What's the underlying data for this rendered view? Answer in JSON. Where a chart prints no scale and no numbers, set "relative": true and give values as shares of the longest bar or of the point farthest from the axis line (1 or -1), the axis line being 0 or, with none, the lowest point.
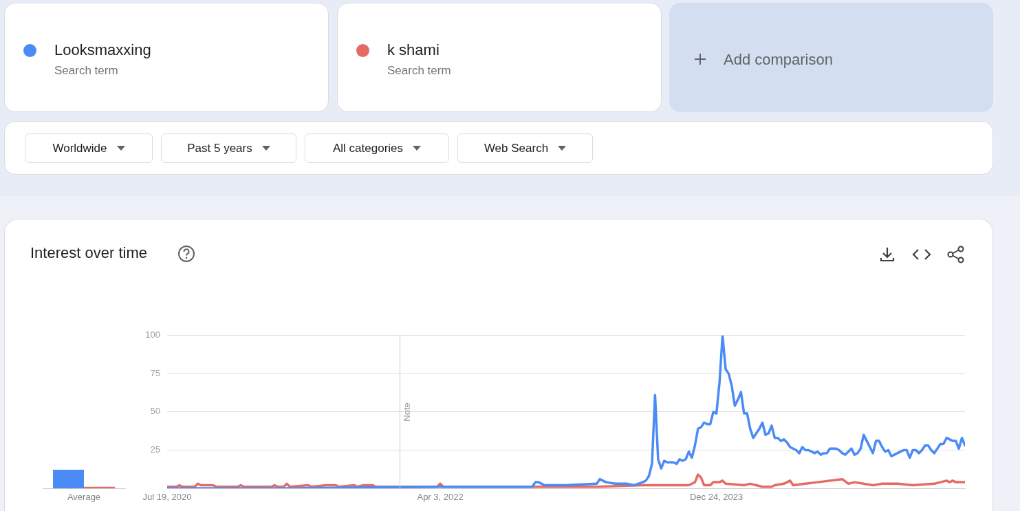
{
  "chart_data": [
    {
      "type": "bar",
      "categories": [
        "Average"
      ],
      "series": [
        {
          "color": "#4b8bf5",
          "values": [
            1
          ]
        },
        {
          "color": "#e66b65",
          "values": [
            0.08
          ]
        }
      ],
      "relative": true,
      "grid": false
    },
    {
      "type": "line",
      "title": "Interest over time",
      "legend": "top",
      "grid": "y",
      "xlim": [
        "2020-07-19",
        "2025-07-13"
      ],
      "xticks": [
        {
          "value": "2020-07-19",
          "label": "Jul 19, 2020"
        },
        {
          "value": "2022-04-03",
          "label": "Apr 3, 2022"
        },
        {
          "value": "2023-12-24",
          "label": "Dec 24, 2023"
        }
      ],
      "ylim": [
        0,
        100
      ],
      "yticks": [
        25,
        50,
        75,
        100
      ],
      "ref_lines": [
        {
          "axis": "x",
          "value": "2022-01-01",
          "label": "Note",
          "color": "#cccccc"
        }
      ],
      "annotations": [
        "Search term",
        "Search term",
        "Add comparison",
        "Worldwide",
        "Past 5 years",
        "All categories",
        "Web Search"
      ],
      "series": [
        {
          "name": "Looksmaxxing",
          "color": "#4b8bf5",
          "x": [
            "2020-07-19",
            "2021-04-25",
            "2022-04-03",
            "2022-10-30",
            "2022-11-06",
            "2022-11-13",
            "2022-11-27",
            "2023-01-15",
            "2023-03-26",
            "2023-04-02",
            "2023-04-16",
            "2023-05-07",
            "2023-06-04",
            "2023-06-18",
            "2023-07-09",
            "2023-07-16",
            "2023-07-23",
            "2023-07-30",
            "2023-08-06",
            "2023-08-13",
            "2023-08-20",
            "2023-08-27",
            "2023-09-03",
            "2023-09-10",
            "2023-09-17",
            "2023-09-24",
            "2023-10-01",
            "2023-10-08",
            "2023-10-15",
            "2023-10-22",
            "2023-10-29",
            "2023-11-05",
            "2023-11-12",
            "2023-11-19",
            "2023-11-26",
            "2023-12-03",
            "2023-12-10",
            "2023-12-17",
            "2023-12-24",
            "2023-12-31",
            "2024-01-07",
            "2024-01-14",
            "2024-01-21",
            "2024-01-28",
            "2024-02-04",
            "2024-02-11",
            "2024-02-18",
            "2024-02-25",
            "2024-03-03",
            "2024-03-10",
            "2024-03-17",
            "2024-03-24",
            "2024-03-31",
            "2024-04-07",
            "2024-04-14",
            "2024-04-21",
            "2024-04-28",
            "2024-05-05",
            "2024-05-12",
            "2024-05-19",
            "2024-05-26",
            "2024-06-02",
            "2024-06-09",
            "2024-06-16",
            "2024-06-23",
            "2024-06-30",
            "2024-07-07",
            "2024-07-14",
            "2024-07-21",
            "2024-07-28",
            "2024-08-04",
            "2024-08-11",
            "2024-08-18",
            "2024-08-25",
            "2024-09-01",
            "2024-09-08",
            "2024-09-15",
            "2024-09-22",
            "2024-09-29",
            "2024-10-06",
            "2024-10-13",
            "2024-10-20",
            "2024-10-27",
            "2024-11-03",
            "2024-11-10",
            "2024-11-17",
            "2024-11-24",
            "2024-12-01",
            "2024-12-08",
            "2024-12-15",
            "2024-12-22",
            "2024-12-29",
            "2025-01-05",
            "2025-01-12",
            "2025-01-19",
            "2025-01-26",
            "2025-02-02",
            "2025-02-09",
            "2025-02-16",
            "2025-02-23",
            "2025-03-02",
            "2025-03-09",
            "2025-03-16",
            "2025-03-23",
            "2025-03-30",
            "2025-04-06",
            "2025-04-13",
            "2025-04-20",
            "2025-04-27",
            "2025-05-04",
            "2025-05-11",
            "2025-05-18",
            "2025-05-25",
            "2025-06-01",
            "2025-06-08",
            "2025-06-15",
            "2025-06-22",
            "2025-06-29",
            "2025-07-06",
            "2025-07-13"
          ],
          "values": [
            0,
            0,
            1,
            1,
            4,
            4,
            2,
            2,
            3,
            6,
            4,
            3,
            3,
            2,
            4,
            5,
            8,
            16,
            61,
            19,
            13,
            18,
            17,
            17,
            17,
            16,
            19,
            18,
            19,
            24,
            20,
            28,
            39,
            40,
            43,
            42,
            42,
            50,
            49,
            69,
            100,
            78,
            75,
            67,
            54,
            58,
            63,
            49,
            49,
            39,
            33,
            36,
            39,
            43,
            35,
            36,
            41,
            33,
            33,
            31,
            32,
            30,
            27,
            26,
            25,
            23,
            27,
            25,
            25,
            24,
            23,
            24,
            22,
            23,
            23,
            26,
            26,
            26,
            25,
            23,
            22,
            24,
            26,
            22,
            23,
            26,
            35,
            31,
            27,
            23,
            31,
            31,
            27,
            24,
            25,
            21,
            22,
            23,
            24,
            25,
            25,
            20,
            25,
            25,
            23,
            25,
            28,
            28,
            25,
            23,
            26,
            29,
            29,
            33,
            32,
            31,
            31,
            26,
            33,
            28
          ]
        },
        {
          "name": "k shami",
          "color": "#e66b65",
          "x": [
            "2020-07-19",
            "2020-08-09",
            "2020-08-16",
            "2020-08-23",
            "2020-09-20",
            "2020-09-27",
            "2020-10-04",
            "2020-11-01",
            "2020-11-08",
            "2020-12-27",
            "2021-01-03",
            "2021-01-10",
            "2021-03-14",
            "2021-03-21",
            "2021-03-28",
            "2021-04-11",
            "2021-04-18",
            "2021-04-25",
            "2021-06-06",
            "2021-06-13",
            "2021-07-18",
            "2021-08-08",
            "2021-08-15",
            "2021-09-19",
            "2021-09-26",
            "2021-10-10",
            "2021-10-31",
            "2021-11-07",
            "2022-03-27",
            "2022-04-03",
            "2022-04-10",
            "2023-03-26",
            "2023-07-09",
            "2023-10-22",
            "2023-11-05",
            "2023-11-12",
            "2023-11-19",
            "2023-11-26",
            "2023-12-10",
            "2023-12-17",
            "2023-12-31",
            "2024-01-07",
            "2024-01-14",
            "2024-02-25",
            "2024-03-10",
            "2024-03-24",
            "2024-04-07",
            "2024-04-28",
            "2024-05-05",
            "2024-05-26",
            "2024-06-09",
            "2024-06-16",
            "2024-07-14",
            "2024-08-11",
            "2024-10-06",
            "2024-10-20",
            "2024-11-03",
            "2024-12-15",
            "2025-01-05",
            "2025-02-09",
            "2025-03-16",
            "2025-05-04",
            "2025-06-01",
            "2025-06-08",
            "2025-06-15",
            "2025-06-22",
            "2025-07-13"
          ],
          "values": [
            1,
            1,
            2,
            1,
            1,
            3,
            2,
            2,
            1,
            1,
            2,
            1,
            1,
            2,
            1,
            1,
            3,
            1,
            2,
            1,
            2,
            2,
            1,
            2,
            1,
            2,
            2,
            1,
            1,
            3,
            1,
            1,
            2,
            2,
            4,
            9,
            7,
            2,
            2,
            4,
            4,
            5,
            3,
            2,
            3,
            2,
            1,
            1,
            2,
            3,
            5,
            2,
            3,
            4,
            6,
            3,
            4,
            2,
            3,
            3,
            2,
            3,
            5,
            4,
            5,
            4,
            4
          ]
        }
      ]
    }
  ]
}
